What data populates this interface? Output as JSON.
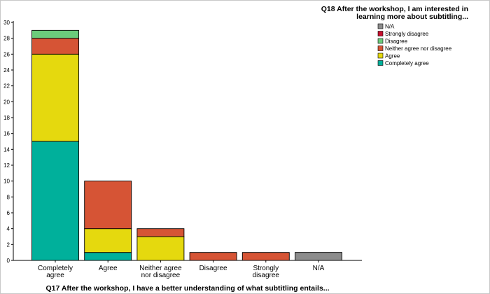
{
  "chart_data": {
    "type": "bar",
    "stacked": true,
    "title": "",
    "xlabel": "Q17 After the workshop, I have a better understanding of what subtitling entails...",
    "ylabel": "",
    "ylim": [
      0,
      30
    ],
    "yticks": [
      0,
      2,
      4,
      6,
      8,
      10,
      12,
      14,
      16,
      18,
      20,
      22,
      24,
      26,
      28,
      30
    ],
    "grid": false,
    "legend_position": "top-right",
    "legend_title": "Q18 After the workshop, I am interested in learning more about subtitling...",
    "categories": [
      [
        "Completely",
        "agree"
      ],
      [
        "Agree"
      ],
      [
        "Neither agree",
        "nor disagree"
      ],
      [
        "Disagree"
      ],
      [
        "Strongly",
        "disagree"
      ],
      [
        "N/A"
      ]
    ],
    "series": [
      {
        "name": "Completely agree",
        "color": "#00b09b",
        "values": [
          15,
          1,
          0,
          0,
          0,
          0
        ]
      },
      {
        "name": "Agree",
        "color": "#e5d90e",
        "values": [
          11,
          3,
          3,
          0,
          0,
          0
        ]
      },
      {
        "name": "Neither agree nor disagree",
        "color": "#d65435",
        "values": [
          2,
          6,
          1,
          1,
          1,
          0
        ]
      },
      {
        "name": "Disagree",
        "color": "#6bcc7b",
        "values": [
          1,
          0,
          0,
          0,
          0,
          0
        ]
      },
      {
        "name": "Strongly disagree",
        "color": "#c8102e",
        "values": [
          0,
          0,
          0,
          0,
          0,
          0
        ]
      },
      {
        "name": "N/A",
        "color": "#8c8c8c",
        "values": [
          0,
          0,
          0,
          0,
          0,
          1
        ]
      }
    ],
    "legend_order": [
      "N/A",
      "Strongly disagree",
      "Disagree",
      "Neither agree nor disagree",
      "Agree",
      "Completely agree"
    ]
  }
}
